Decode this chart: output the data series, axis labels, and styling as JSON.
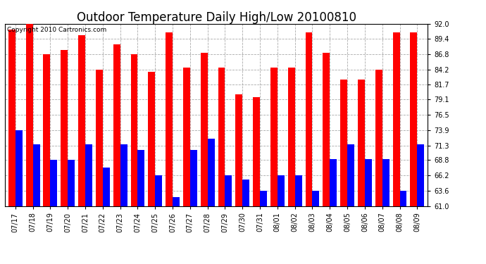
{
  "title": "Outdoor Temperature Daily High/Low 20100810",
  "copyright": "Copyright 2010 Cartronics.com",
  "ylim": [
    61.0,
    92.0
  ],
  "yticks": [
    61.0,
    63.6,
    66.2,
    68.8,
    71.3,
    73.9,
    76.5,
    79.1,
    81.7,
    84.2,
    86.8,
    89.4,
    92.0
  ],
  "dates": [
    "07/17",
    "07/18",
    "07/19",
    "07/20",
    "07/21",
    "07/22",
    "07/23",
    "07/24",
    "07/25",
    "07/26",
    "07/27",
    "07/28",
    "07/29",
    "07/30",
    "07/31",
    "08/01",
    "08/02",
    "08/03",
    "08/04",
    "08/05",
    "08/06",
    "08/07",
    "08/08",
    "08/09"
  ],
  "highs": [
    91.0,
    92.0,
    86.8,
    87.5,
    90.0,
    84.2,
    88.5,
    86.8,
    83.8,
    90.5,
    84.5,
    87.0,
    84.5,
    80.0,
    79.5,
    84.5,
    84.5,
    90.5,
    87.0,
    82.5,
    82.5,
    84.2,
    90.5,
    90.5
  ],
  "lows": [
    73.9,
    71.5,
    68.8,
    68.8,
    71.5,
    67.5,
    71.5,
    70.5,
    66.2,
    62.5,
    70.5,
    72.5,
    66.2,
    65.5,
    63.6,
    66.2,
    66.2,
    63.6,
    69.0,
    71.5,
    69.0,
    69.0,
    63.6,
    71.5
  ],
  "bar_width": 0.4,
  "high_color": "#ff0000",
  "low_color": "#0000ff",
  "bg_color": "#ffffff",
  "grid_color": "#aaaaaa",
  "title_fontsize": 12,
  "tick_fontsize": 7,
  "copyright_fontsize": 6.5,
  "figsize": [
    6.9,
    3.75
  ],
  "dpi": 100
}
